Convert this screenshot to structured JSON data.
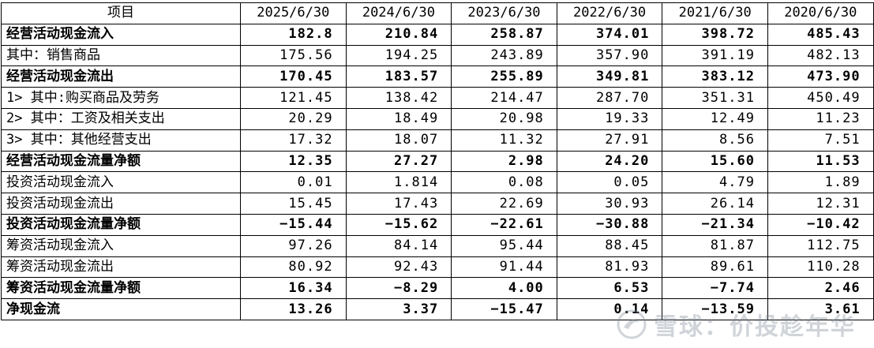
{
  "table": {
    "header": [
      "项目",
      "2025/6/30",
      "2024/6/30",
      "2023/6/30",
      "2022/6/30",
      "2021/6/30",
      "2020/6/30"
    ],
    "rows": [
      {
        "label": "经营活动现金流入",
        "bold": true,
        "values": [
          "182.8",
          "210.84",
          "258.87",
          "374.01",
          "398.72",
          "485.43"
        ]
      },
      {
        "label": "其中：销售商品",
        "bold": false,
        "values": [
          "175.56",
          "194.25",
          "243.89",
          "357.90",
          "391.19",
          "482.13"
        ]
      },
      {
        "label": "经营活动现金流出",
        "bold": true,
        "values": [
          "170.45",
          "183.57",
          "255.89",
          "349.81",
          "383.12",
          "473.90"
        ]
      },
      {
        "label": "1> 其中:购买商品及劳务",
        "bold": false,
        "values": [
          "121.45",
          "138.42",
          "214.47",
          "287.70",
          "351.31",
          "450.49"
        ]
      },
      {
        "label": "2> 其中：工资及相关支出",
        "bold": false,
        "values": [
          "20.29",
          "18.49",
          "20.98",
          "19.33",
          "12.49",
          "11.23"
        ]
      },
      {
        "label": "3> 其中：其他经营支出",
        "bold": false,
        "values": [
          "17.32",
          "18.07",
          "11.32",
          "27.91",
          "8.56",
          "7.51"
        ]
      },
      {
        "label": "经营活动现金流量净额",
        "bold": true,
        "values": [
          "12.35",
          "27.27",
          "2.98",
          "24.20",
          "15.60",
          "11.53"
        ]
      },
      {
        "label": "投资活动现金流入",
        "bold": false,
        "values": [
          "0.01",
          "1.814",
          "0.08",
          "0.05",
          "4.79",
          "1.89"
        ]
      },
      {
        "label": "投资活动现金流出",
        "bold": false,
        "values": [
          "15.45",
          "17.43",
          "22.69",
          "30.93",
          "26.14",
          "12.31"
        ]
      },
      {
        "label": "投资活动现金流量净额",
        "bold": true,
        "values": [
          "−15.44",
          "−15.62",
          "−22.61",
          "−30.88",
          "−21.34",
          "−10.42"
        ]
      },
      {
        "label": "筹资活动现金流入",
        "bold": false,
        "values": [
          "97.26",
          "84.14",
          "95.44",
          "88.45",
          "81.87",
          "112.75"
        ]
      },
      {
        "label": "筹资活动现金流出",
        "bold": false,
        "values": [
          "80.92",
          "92.43",
          "91.44",
          "81.93",
          "89.61",
          "110.28"
        ]
      },
      {
        "label": "筹资活动现金流量净额",
        "bold": true,
        "values": [
          "16.34",
          "−8.29",
          "4.00",
          "6.53",
          "−7.74",
          "2.46"
        ]
      },
      {
        "label": "净现金流",
        "bold": true,
        "values": [
          "13.26",
          "3.37",
          "−15.47",
          "0.14",
          "−13.59",
          "3.61"
        ]
      }
    ]
  },
  "watermark": {
    "text": "雪球：价投趁年华",
    "icon": "snowball-logo-icon",
    "color": "#7a8794"
  }
}
